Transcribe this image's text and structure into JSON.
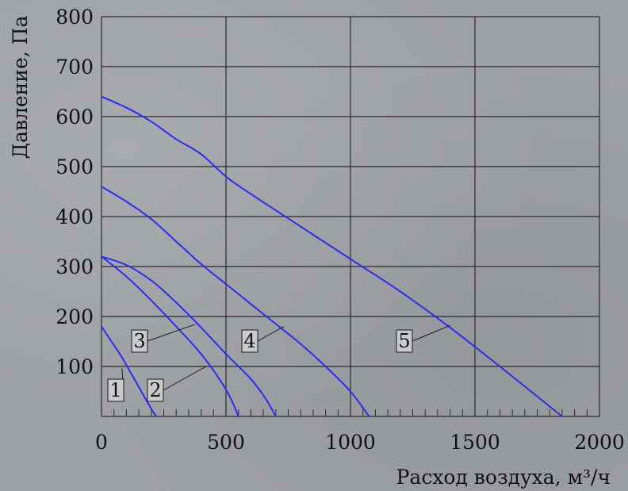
{
  "chart_data": {
    "type": "line",
    "xlabel": "Расход воздуха, м³/ч",
    "ylabel": "Давление, Па",
    "xlim": [
      0,
      2000
    ],
    "ylim": [
      0,
      800
    ],
    "x_ticks": [
      0,
      500,
      1000,
      1500,
      2000
    ],
    "y_ticks": [
      100,
      200,
      300,
      400,
      500,
      600,
      700,
      800
    ],
    "x_minor_step": 50,
    "grid": true,
    "series": [
      {
        "name": "1",
        "points": [
          [
            0,
            180
          ],
          [
            40,
            150
          ],
          [
            80,
            120
          ],
          [
            120,
            85
          ],
          [
            160,
            50
          ],
          [
            200,
            15
          ],
          [
            220,
            0
          ]
        ]
      },
      {
        "name": "2",
        "points": [
          [
            0,
            320
          ],
          [
            100,
            280
          ],
          [
            200,
            232
          ],
          [
            300,
            180
          ],
          [
            400,
            125
          ],
          [
            480,
            70
          ],
          [
            520,
            35
          ],
          [
            550,
            0
          ]
        ]
      },
      {
        "name": "3",
        "points": [
          [
            0,
            320
          ],
          [
            100,
            303
          ],
          [
            200,
            272
          ],
          [
            300,
            228
          ],
          [
            400,
            178
          ],
          [
            500,
            125
          ],
          [
            600,
            75
          ],
          [
            660,
            35
          ],
          [
            700,
            0
          ]
        ]
      },
      {
        "name": "4",
        "points": [
          [
            0,
            460
          ],
          [
            100,
            430
          ],
          [
            200,
            395
          ],
          [
            300,
            350
          ],
          [
            400,
            305
          ],
          [
            500,
            265
          ],
          [
            600,
            225
          ],
          [
            700,
            185
          ],
          [
            800,
            145
          ],
          [
            900,
            100
          ],
          [
            1000,
            50
          ],
          [
            1075,
            0
          ]
        ]
      },
      {
        "name": "5",
        "points": [
          [
            0,
            640
          ],
          [
            100,
            618
          ],
          [
            200,
            590
          ],
          [
            300,
            555
          ],
          [
            400,
            525
          ],
          [
            500,
            480
          ],
          [
            600,
            445
          ],
          [
            800,
            380
          ],
          [
            1000,
            315
          ],
          [
            1200,
            250
          ],
          [
            1400,
            178
          ],
          [
            1600,
            100
          ],
          [
            1800,
            20
          ],
          [
            1850,
            0
          ]
        ]
      }
    ]
  }
}
